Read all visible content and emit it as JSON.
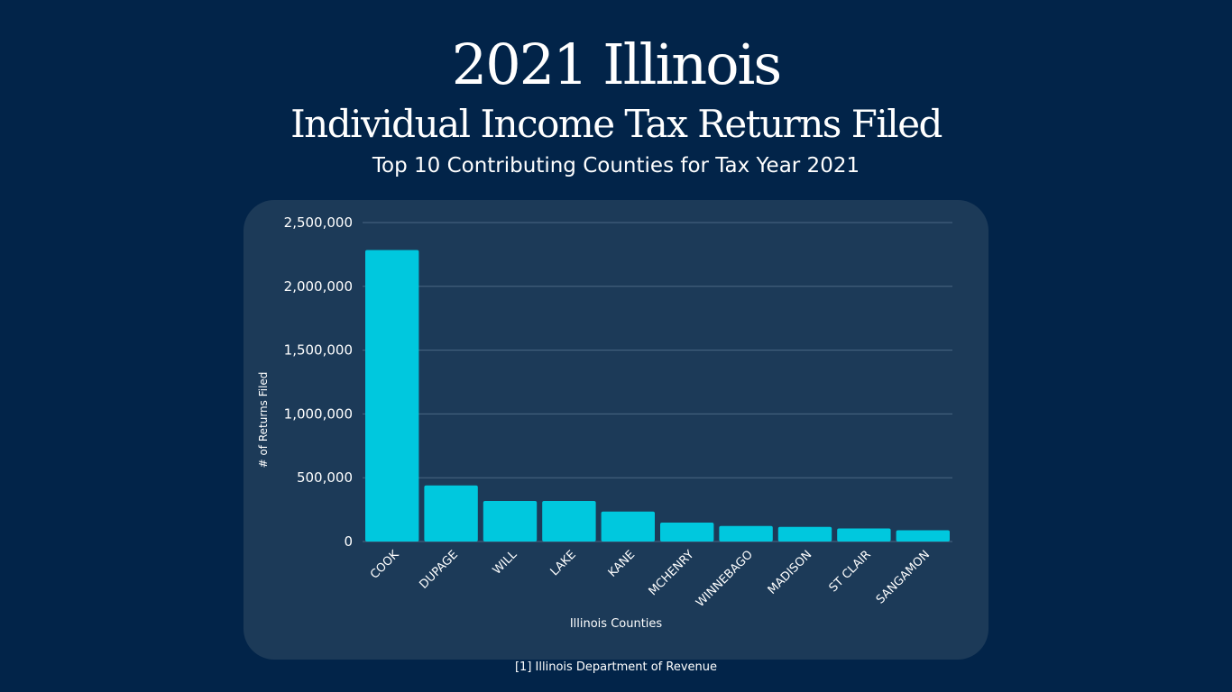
{
  "header": {
    "title": "2021 Illinois",
    "subtitle": "Individual Income Tax Returns Filed",
    "tagline": "Top 10 Contributing Counties for Tax Year 2021"
  },
  "footer": {
    "source": "[1] Illinois Department of Revenue"
  },
  "colors": {
    "background": "#022449",
    "panel": "#1c3a58",
    "bar": "#00c8de",
    "grid": "#4a6783"
  },
  "chart_data": {
    "type": "bar",
    "categories": [
      "COOK",
      "DUPAGE",
      "WILL",
      "LAKE",
      "KANE",
      "MCHENRY",
      "WINNEBAGO",
      "MADISON",
      "ST CLAIR",
      "SANGAMON"
    ],
    "values": [
      2285000,
      440000,
      318000,
      318000,
      235000,
      148000,
      122000,
      115000,
      102000,
      88000
    ],
    "xlabel": "Illinois Counties",
    "ylabel": "# of Returns Filed",
    "ylim": [
      0,
      2500000
    ],
    "yticks": [
      0,
      500000,
      1000000,
      1500000,
      2000000,
      2500000
    ],
    "ytick_labels": [
      "0",
      "500,000",
      "1,000,000",
      "1,500,000",
      "2,000,000",
      "2,500,000"
    ],
    "grid": true,
    "legend": "none"
  }
}
